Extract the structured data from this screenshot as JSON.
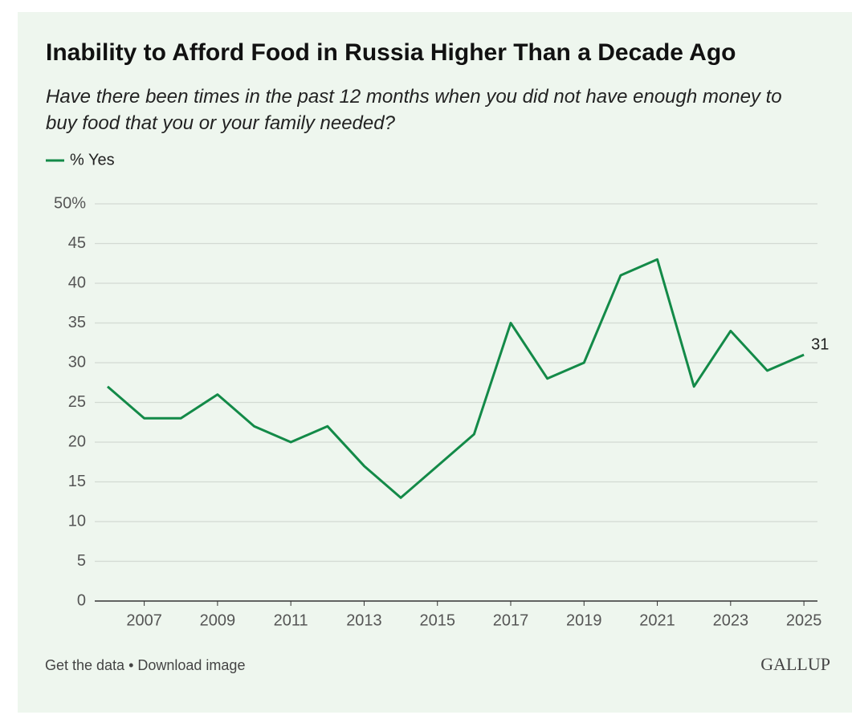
{
  "chart_data": {
    "type": "line",
    "title": "Inability to Afford Food in Russia Higher Than a Decade Ago",
    "subtitle": "Have there been times in the past 12 months when you did not have enough money to buy food that you or your family needed?",
    "x": [
      2006,
      2007,
      2008,
      2009,
      2010,
      2011,
      2012,
      2013,
      2014,
      2015,
      2016,
      2017,
      2018,
      2019,
      2020,
      2021,
      2022,
      2023,
      2024,
      2025
    ],
    "series": [
      {
        "name": "% Yes",
        "color": "#138a48",
        "values": [
          27,
          23,
          23,
          26,
          22,
          20,
          22,
          17,
          13,
          17,
          21,
          35,
          28,
          30,
          41,
          43,
          27,
          34,
          29,
          31
        ]
      }
    ],
    "xlim": [
      2005.65,
      2025.37
    ],
    "xticks": [
      2007,
      2009,
      2011,
      2013,
      2015,
      2017,
      2019,
      2021,
      2023,
      2025
    ],
    "ylim": [
      0,
      50
    ],
    "yticks": [
      0,
      5,
      10,
      15,
      20,
      25,
      30,
      35,
      40,
      45,
      {
        "value": 50,
        "label": "50%"
      }
    ],
    "grid": true,
    "end_label": true,
    "footer": "Get the data • Download image",
    "logo": "GALLUP"
  }
}
